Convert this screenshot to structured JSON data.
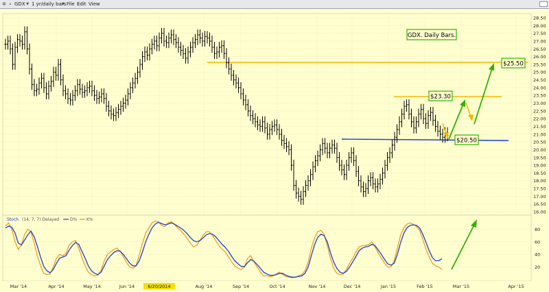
{
  "toolbar": {
    "symbol": "GDX",
    "period": "1 yr/daily bars",
    "menu": [
      "File",
      "Edit",
      "View"
    ]
  },
  "price_panel": {
    "y_ticks": [
      "28.50",
      "28.00",
      "27.50",
      "27.00",
      "26.50",
      "26.00",
      "25.50",
      "25.00",
      "24.50",
      "24.00",
      "23.50",
      "23.00",
      "22.50",
      "22.00",
      "21.50",
      "21.00",
      "20.50",
      "20.00",
      "19.50",
      "19.00",
      "18.50",
      "18.00",
      "17.50",
      "17.00",
      "16.50",
      "16.00"
    ],
    "title": "GDX. Daily Bars.",
    "annotations": [
      "$25.50",
      "$23.30",
      "$20.50"
    ]
  },
  "indicator_panel": {
    "label": "Stoch",
    "params": "(14, 7, 7) Delayed",
    "legend": [
      "D%",
      "K%"
    ],
    "y_ticks": [
      "80",
      "60",
      "40",
      "20"
    ]
  },
  "x_axis": {
    "labels": [
      "Mar '14",
      "Apr '14",
      "May '14",
      "Jun '14",
      "6/20/2014",
      "Aug '14",
      "Sep '14",
      "Oct '14",
      "Nov '14",
      "Dec '14",
      "Jan '15",
      "Feb '15",
      "Mar '15",
      "Apr '15"
    ]
  },
  "colors": {
    "background": "#fffecf",
    "bars": "#000000",
    "yellow_line": "#f2b800",
    "blue_line": "#1d3fc9",
    "green": "#2fb200",
    "stoch_d": "#1d3fc9",
    "stoch_k": "#f09000"
  },
  "chart_data": [
    {
      "type": "line",
      "ylim": [
        16.0,
        28.5
      ],
      "grid": true,
      "series": [
        {
          "values": [
            26.8,
            27.0,
            26.5,
            25.5,
            26.6,
            27.1,
            27.0,
            26.8,
            27.6,
            26.5,
            25.2,
            24.2,
            23.8,
            23.9,
            24.3,
            24.6,
            24.0,
            23.6,
            24.1,
            24.4,
            25.0,
            24.8,
            25.5,
            24.5,
            23.8,
            23.6,
            23.3,
            23.2,
            23.5,
            23.8,
            24.2,
            23.9,
            23.7,
            23.8,
            24.0,
            24.1,
            23.8,
            23.5,
            23.3,
            23.4,
            23.6,
            23.3,
            22.8,
            22.5,
            22.3,
            22.2,
            22.4,
            22.6,
            22.8,
            23.0,
            23.2,
            23.6,
            24.0,
            24.3,
            24.6,
            25.0,
            25.5,
            26.0,
            26.3,
            26.1,
            26.5,
            26.8,
            27.0,
            26.7,
            27.2,
            27.5,
            27.0,
            26.9,
            27.2,
            27.4,
            27.1,
            26.9,
            26.6,
            26.4,
            26.2,
            25.9,
            26.3,
            26.6,
            26.9,
            27.1,
            27.4,
            27.2,
            27.0,
            27.3,
            27.2,
            27.0,
            26.6,
            26.2,
            26.3,
            26.6,
            26.7,
            26.2,
            25.6,
            25.2,
            24.8,
            24.5,
            24.3,
            24.0,
            23.6,
            23.2,
            22.9,
            22.5,
            22.2,
            22.0,
            21.8,
            21.6,
            21.5,
            21.8,
            21.4,
            21.0,
            21.3,
            21.5,
            21.6,
            21.3,
            21.0,
            20.6,
            20.4,
            20.2,
            20.0,
            19.0,
            17.7,
            17.2,
            17.0,
            16.8,
            17.3,
            17.7,
            18.0,
            18.4,
            18.9,
            19.3,
            19.6,
            20.0,
            20.4,
            20.1,
            19.8,
            20.1,
            20.3,
            20.1,
            19.5,
            19.0,
            18.7,
            18.4,
            19.0,
            19.5,
            19.8,
            19.3,
            18.6,
            18.0,
            17.6,
            17.3,
            17.5,
            18.0,
            18.2,
            17.8,
            17.6,
            17.8,
            18.1,
            18.5,
            19.0,
            19.5,
            19.8,
            20.3,
            20.8,
            21.3,
            21.8,
            22.3,
            22.8,
            22.9,
            22.3,
            21.8,
            21.4,
            21.8,
            22.3,
            22.6,
            22.0,
            21.7,
            22.2,
            22.4,
            21.9,
            21.5,
            21.2,
            21.0,
            20.8,
            21.1,
            20.9
          ]
        }
      ]
    },
    {
      "type": "line",
      "ylim": [
        0,
        100
      ],
      "grid": true,
      "series": [
        {
          "name": "D%",
          "values": [
            82,
            85,
            83,
            74,
            58,
            55,
            63,
            71,
            77,
            68,
            53,
            36,
            21,
            14,
            11,
            16,
            26,
            34,
            36,
            38,
            47,
            54,
            59,
            56,
            45,
            34,
            22,
            14,
            10,
            8,
            12,
            22,
            32,
            38,
            43,
            46,
            45,
            40,
            33,
            26,
            22,
            22,
            30,
            44,
            60,
            72,
            82,
            88,
            91,
            89,
            87,
            88,
            90,
            88,
            85,
            82,
            78,
            73,
            67,
            62,
            60,
            62,
            66,
            71,
            73,
            72,
            68,
            62,
            56,
            51,
            45,
            37,
            30,
            25,
            21,
            21,
            27,
            32,
            29,
            24,
            18,
            12,
            9,
            7,
            7,
            8,
            10,
            10,
            7,
            5,
            4,
            4,
            5,
            6,
            10,
            20,
            38,
            55,
            67,
            72,
            70,
            60,
            43,
            28,
            18,
            12,
            10,
            13,
            20,
            28,
            37,
            46,
            50,
            52,
            53,
            56,
            54,
            47,
            40,
            32,
            25,
            23,
            26,
            40,
            58,
            73,
            82,
            86,
            87,
            86,
            82,
            72,
            59,
            46,
            35,
            30,
            30,
            33
          ]
        },
        {
          "name": "K%",
          "values": [
            85,
            90,
            80,
            60,
            48,
            55,
            72,
            80,
            76,
            58,
            38,
            22,
            10,
            8,
            9,
            20,
            34,
            40,
            38,
            42,
            55,
            60,
            62,
            50,
            35,
            22,
            12,
            8,
            6,
            7,
            15,
            30,
            40,
            44,
            48,
            50,
            45,
            36,
            27,
            20,
            18,
            22,
            40,
            58,
            74,
            82,
            90,
            93,
            92,
            86,
            84,
            90,
            92,
            88,
            82,
            78,
            72,
            66,
            58,
            52,
            54,
            62,
            70,
            76,
            76,
            70,
            62,
            54,
            48,
            44,
            36,
            28,
            22,
            18,
            16,
            20,
            34,
            38,
            28,
            20,
            12,
            6,
            6,
            5,
            6,
            9,
            12,
            8,
            5,
            4,
            3,
            4,
            6,
            8,
            14,
            28,
            50,
            66,
            76,
            78,
            72,
            54,
            34,
            18,
            10,
            8,
            9,
            16,
            26,
            34,
            44,
            52,
            54,
            54,
            56,
            60,
            52,
            42,
            34,
            26,
            20,
            20,
            30,
            50,
            70,
            82,
            88,
            90,
            88,
            84,
            78,
            64,
            48,
            36,
            26,
            22,
            20,
            16
          ]
        }
      ]
    }
  ]
}
